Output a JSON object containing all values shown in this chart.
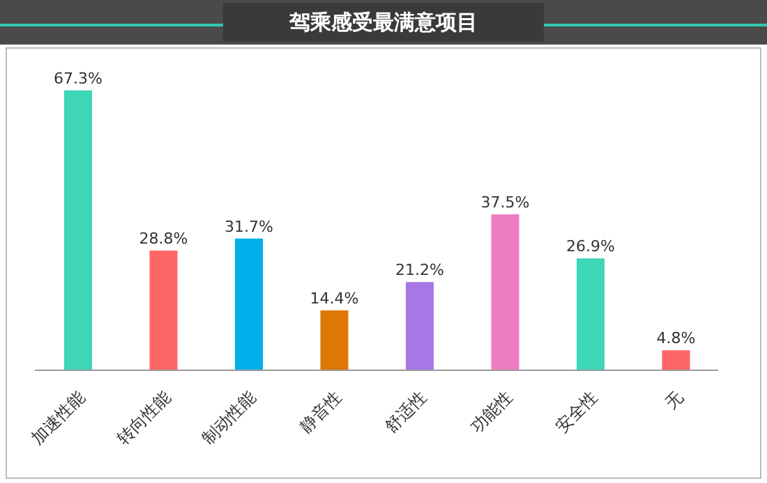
{
  "chart_data": {
    "type": "bar",
    "title": "驾乘感受最满意项目",
    "categories": [
      "加速性能",
      "转向性能",
      "制动性能",
      "静音性",
      "舒适性",
      "功能性",
      "安全性",
      "无"
    ],
    "values": [
      67.3,
      28.8,
      31.7,
      14.4,
      21.2,
      37.5,
      26.9,
      4.8
    ],
    "value_labels": [
      "67.3%",
      "28.8%",
      "31.7%",
      "14.4%",
      "21.2%",
      "37.5%",
      "26.9%",
      "4.8%"
    ],
    "colors": [
      "#3dd6b7",
      "#ff6666",
      "#00b0ea",
      "#dd7706",
      "#a678e6",
      "#ee7cc0",
      "#3dd6b7",
      "#ff6666"
    ],
    "grid": false,
    "legend": false
  }
}
